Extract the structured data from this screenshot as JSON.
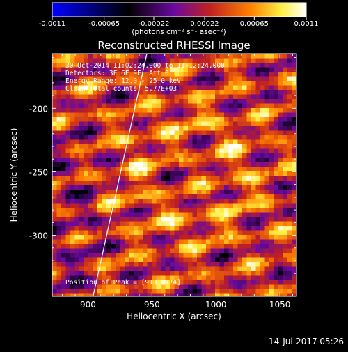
{
  "colorbar": {
    "ticks": [
      "-0.0011",
      "-0.00065",
      "-0.00022",
      "0.00022",
      "0.00065",
      "0.0011"
    ],
    "tick_values": [
      -0.0011,
      -0.00065,
      -0.00022,
      0.00022,
      0.00065,
      0.0011
    ],
    "unit_label": "(photons cm⁻² s⁻¹ asec⁻²)",
    "colormap": [
      "#0000ff",
      "#000000",
      "#6a0aa0",
      "#c02020",
      "#ff8000",
      "#ffee40",
      "#ffffff"
    ]
  },
  "chart_data": {
    "type": "heatmap",
    "title": "Reconstructed RHESSI Image",
    "xlabel": "Heliocentric X (arcsec)",
    "ylabel": "Heliocentric Y (arcsec)",
    "xlim": [
      872,
      1063
    ],
    "ylim": [
      -348,
      -157
    ],
    "xticks": [
      900,
      950,
      1000,
      1050
    ],
    "yticks": [
      -200,
      -250,
      -300
    ],
    "annotations": [
      "30-Oct-2014 11:02:24.000 to 11:12:24.000",
      "Detectors: 3F 6F 9F, Att 0",
      "Energy Range: 12.0 - 25.0 keV",
      "Clean    Total counts: 5.77E+03",
      "Position of Peak = [913,-174]"
    ],
    "peak": [
      913,
      -174
    ],
    "limb_line": [
      [
        904,
        -348
      ],
      [
        946,
        -157
      ]
    ],
    "grid": false
  },
  "footer": {
    "timestamp": "14-Jul-2017 05:26"
  }
}
